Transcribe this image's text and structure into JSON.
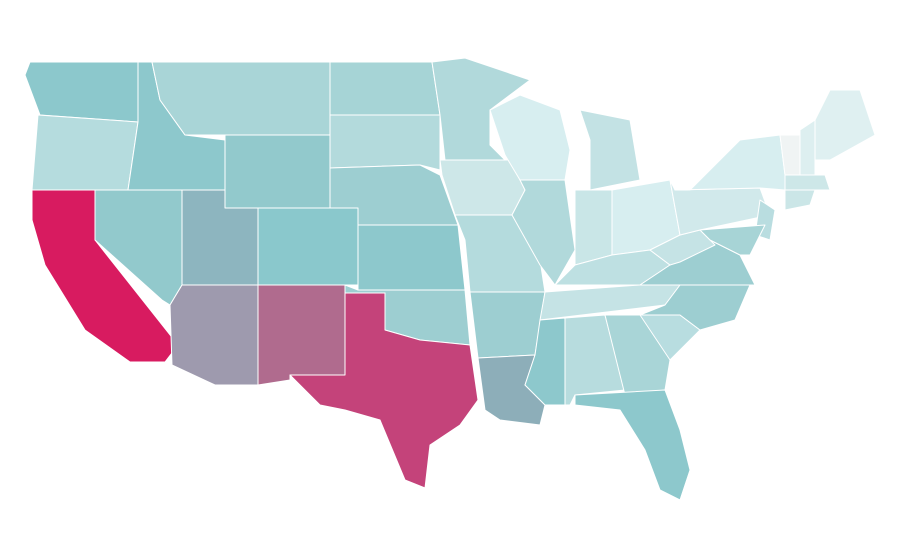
{
  "map": {
    "regions": [
      {
        "color": "#8cc8cc"
      },
      {
        "color": "#b5dcde"
      },
      {
        "color": "#d81b60"
      },
      {
        "color": "#8dc8cc"
      },
      {
        "color": "#92c9cc"
      },
      {
        "color": "#a9d5d7"
      },
      {
        "color": "#92c9cc"
      },
      {
        "color": "#8db5bf"
      },
      {
        "color": "#9e9aae"
      },
      {
        "color": "#8ac8cc"
      },
      {
        "color": "#b06b8e"
      },
      {
        "color": "#a6d4d6"
      },
      {
        "color": "#b3dadc"
      },
      {
        "color": "#9dced1"
      },
      {
        "color": "#8dc8cc"
      },
      {
        "color": "#9dced1"
      },
      {
        "color": "#c4437a"
      },
      {
        "color": "#b1d9db"
      },
      {
        "color": "#cde7e8"
      },
      {
        "color": "#b4dbdd"
      },
      {
        "color": "#9dced1"
      },
      {
        "color": "#8daeb9"
      },
      {
        "color": "#d7eef0"
      },
      {
        "color": "#b1d9db"
      },
      {
        "color": "#c3e2e4"
      },
      {
        "color": "#c9e6e7"
      },
      {
        "color": "#d7eef0"
      },
      {
        "color": "#bee0e2"
      },
      {
        "color": "#c5e3e5"
      },
      {
        "color": "#8dc8cc"
      },
      {
        "color": "#b7dcde"
      },
      {
        "color": "#a9d5d7"
      },
      {
        "color": "#8dc8cc"
      },
      {
        "color": "#b8dde0"
      },
      {
        "color": "#9dced1"
      },
      {
        "color": "#9dced1"
      },
      {
        "color": "#c5e3e5"
      },
      {
        "color": "#d1e9eb"
      },
      {
        "color": "#d7eef0"
      },
      {
        "color": "#b9dde0"
      },
      {
        "color": "#a7d4d6"
      },
      {
        "color": "#f0f4f4"
      },
      {
        "color": "#ddeff0"
      },
      {
        "color": "#dff0f1"
      },
      {
        "color": "#cde7e8"
      },
      {
        "color": "#cbe6e7"
      }
    ]
  }
}
